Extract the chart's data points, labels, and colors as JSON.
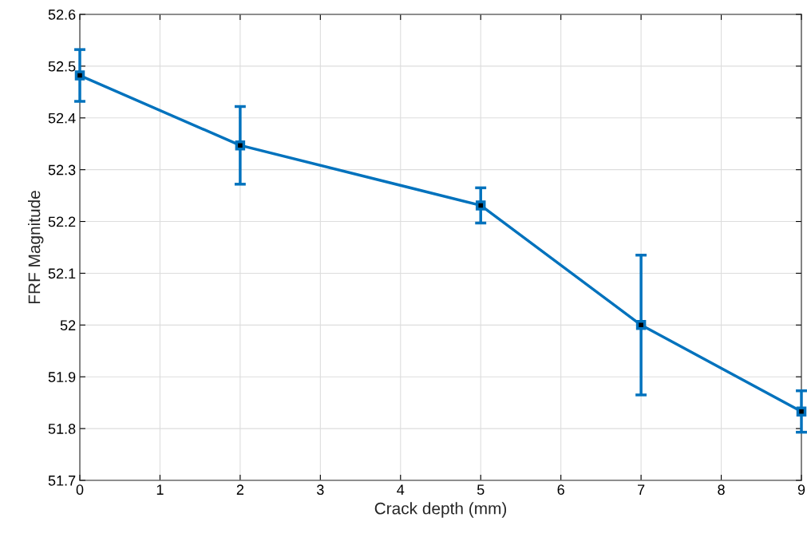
{
  "chart_data": {
    "type": "line",
    "xlabel": "Crack depth (mm)",
    "ylabel": "FRF Magnitude",
    "x": [
      0,
      2,
      5,
      7,
      9
    ],
    "series": [
      {
        "color": "#0072bd",
        "values": [
          52.482,
          52.347,
          52.231,
          52.0,
          51.833
        ],
        "errors": [
          0.05,
          0.075,
          0.034,
          0.135,
          0.04
        ]
      }
    ],
    "xlim": [
      0,
      9
    ],
    "xticks": [
      0,
      1,
      2,
      3,
      4,
      5,
      6,
      7,
      8,
      9
    ],
    "ylim": [
      51.7,
      52.6
    ],
    "yticks": [
      51.7,
      51.8,
      51.9,
      52,
      52.1,
      52.2,
      52.3,
      52.4,
      52.5,
      52.6
    ],
    "grid": true,
    "marker": "square",
    "line_style": "solid"
  }
}
